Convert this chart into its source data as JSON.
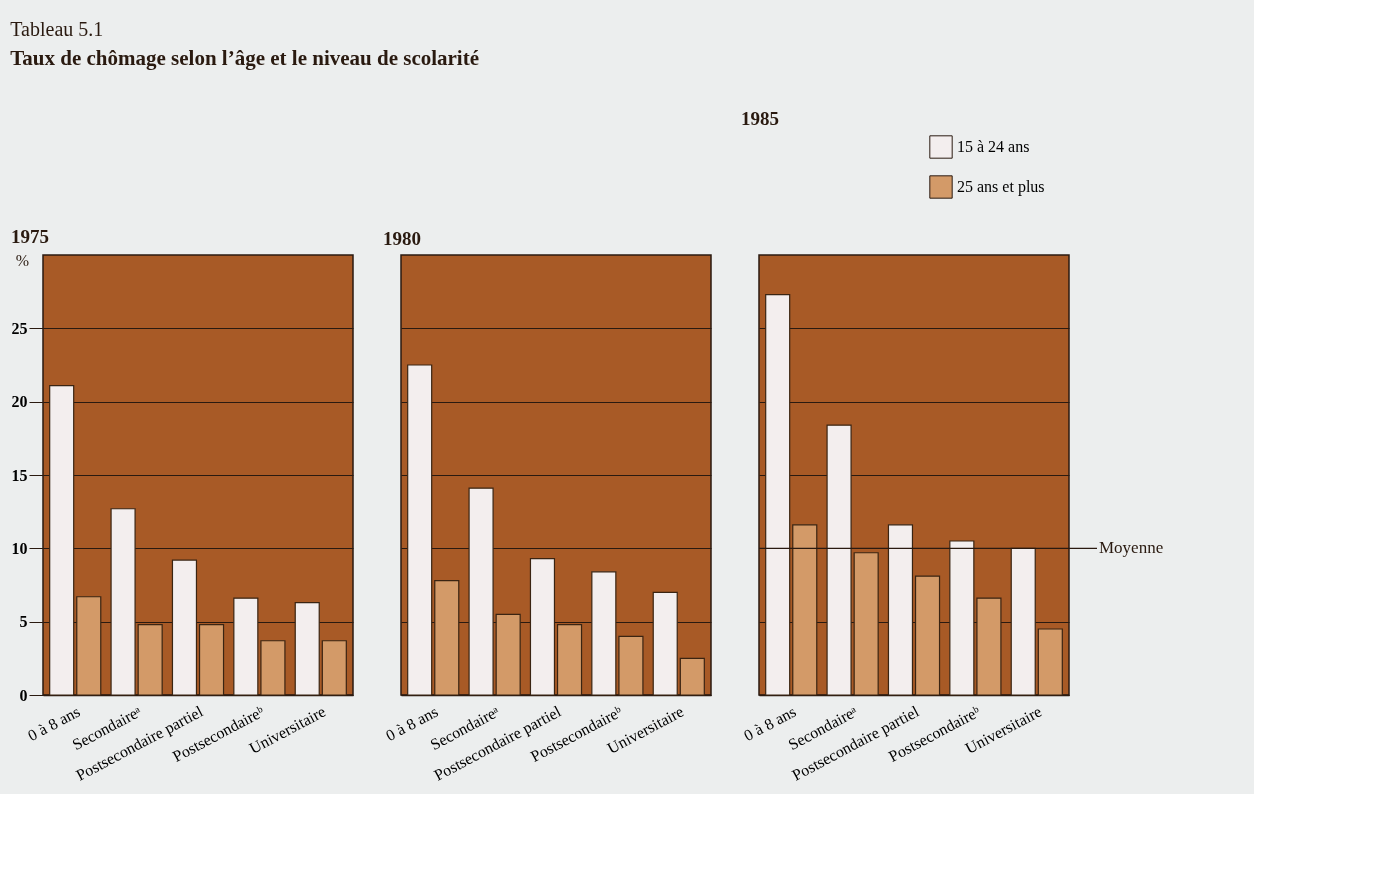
{
  "chart_data": [
    {
      "type": "bar",
      "title": "1975",
      "ylabel": "%",
      "annotations": [
        "Tableau 5.1",
        "Taux de chômage selon l’âge et le niveau de scolarité"
      ],
      "categories": [
        "0 à 8 ans",
        "Secondaireᵃ",
        "Postsecondaire partiel",
        "Postsecondaireᵇ",
        "Universitaire"
      ],
      "ylim": [
        0,
        30
      ],
      "yticks": [
        0,
        5,
        10,
        15,
        20,
        25
      ],
      "grid": "y",
      "series": [
        {
          "color": "#f3eeee",
          "values": [
            21.1,
            12.7,
            9.2,
            6.6,
            6.3
          ]
        },
        {
          "color": "#d39a68",
          "values": [
            6.7,
            4.8,
            4.8,
            3.7,
            3.7
          ]
        }
      ]
    },
    {
      "type": "bar",
      "title": "1980",
      "categories": [
        "0 à 8 ans",
        "Secondaireᵃ",
        "Postsecondaire partiel",
        "Postsecondaireᵇ",
        "Universitaire"
      ],
      "ylim": [
        0,
        30
      ],
      "yticks": [
        0,
        5,
        10,
        15,
        20,
        25
      ],
      "grid": "y",
      "tick_labels": "x",
      "series": [
        {
          "color": "#f3eeee",
          "values": [
            22.5,
            14.1,
            9.3,
            8.4,
            7.0
          ]
        },
        {
          "color": "#d39a68",
          "values": [
            7.8,
            5.5,
            4.8,
            4.0,
            2.5
          ]
        }
      ]
    },
    {
      "type": "bar",
      "title": "1985",
      "categories": [
        "0 à 8 ans",
        "Secondaireᵃ",
        "Postsecondaire partiel",
        "Postsecondaireᵇ",
        "Universitaire"
      ],
      "ylim": [
        0,
        30
      ],
      "yticks": [
        0,
        5,
        10,
        15,
        20,
        25
      ],
      "grid": "y",
      "tick_labels": "x",
      "legend": "top right",
      "ref_lines": [
        {
          "axis": "y",
          "value": 10,
          "label": "Moyenne"
        }
      ],
      "series": [
        {
          "name": "15 à 24 ans",
          "color": "#f3eeee",
          "values": [
            27.3,
            18.4,
            11.6,
            10.5,
            10.0
          ]
        },
        {
          "name": "25 ans et plus",
          "color": "#d39a68",
          "values": [
            11.6,
            9.7,
            8.1,
            6.6,
            4.5
          ]
        }
      ]
    }
  ]
}
